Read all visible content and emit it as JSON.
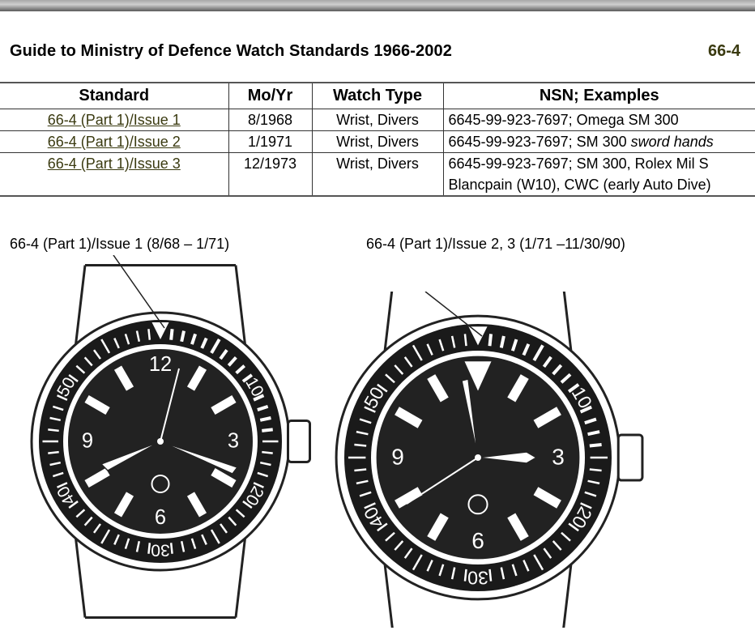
{
  "header": {
    "title": "Guide to Ministry of Defence Watch Standards 1966-2002",
    "code": "66-4"
  },
  "table": {
    "headers": [
      "Standard",
      "Mo/Yr",
      "Watch Type",
      "NSN; Examples"
    ],
    "rows": [
      {
        "standard": "66-4 (Part 1)/Issue 1",
        "moyr": "8/1968",
        "type": "Wrist, Divers",
        "nsn": "6645-99-923-7697; Omega SM 300",
        "nsn_italic": "",
        "nsn2": ""
      },
      {
        "standard": "66-4 (Part 1)/Issue 2",
        "moyr": "1/1971",
        "type": "Wrist, Divers",
        "nsn": "6645-99-923-7697; SM 300 ",
        "nsn_italic": "sword hands",
        "nsn2": ""
      },
      {
        "standard": "66-4 (Part 1)/Issue 3",
        "moyr": "12/1973",
        "type": "Wrist, Divers",
        "nsn": "6645-99-923-7697; SM 300, Rolex Mil S",
        "nsn_italic": "",
        "nsn2": "Blancpain (W10), CWC (early Auto Dive)"
      }
    ]
  },
  "figures": [
    {
      "caption": "66-4 (Part 1)/Issue 1 (8/68 – 1/71)",
      "bezel_numerals": [
        "10",
        "20",
        "30",
        "40",
        "50"
      ],
      "dial_numerals": [
        "12",
        "3",
        "6",
        "9"
      ]
    },
    {
      "caption": "66-4 (Part 1)/Issue 2, 3 (1/71 –11/30/90)",
      "bezel_numerals": [
        "10",
        "20",
        "30",
        "40",
        "50"
      ],
      "dial_numerals": [
        "3",
        "6",
        "9"
      ]
    }
  ],
  "colors": {
    "link": "#3a3a10",
    "bezel": "#1a1a1a",
    "dial": "#222222"
  }
}
